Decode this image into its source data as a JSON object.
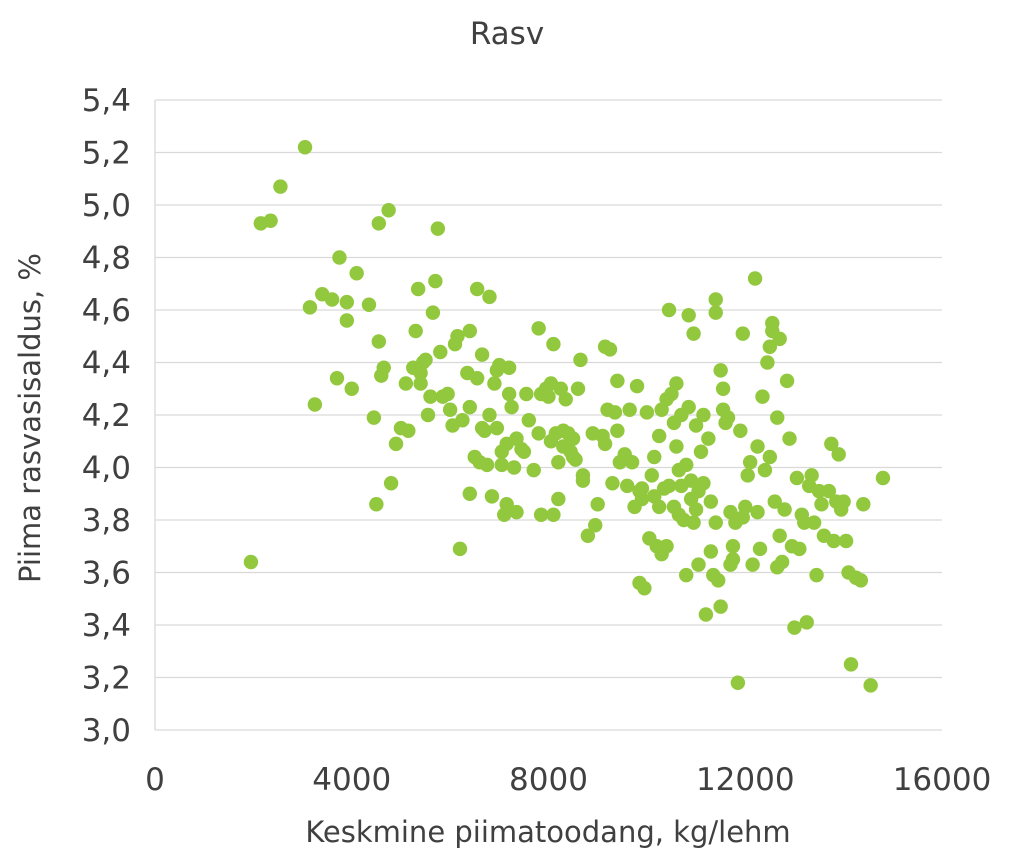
{
  "chart_data": {
    "type": "scatter",
    "title": "Rasv",
    "xlabel": "Keskmine piimatoodang, kg/lehm",
    "ylabel": "Piima rasvasisaldus, %",
    "xlim": [
      0,
      16000
    ],
    "ylim": [
      3.0,
      5.4
    ],
    "x_ticks": [
      0,
      4000,
      8000,
      12000,
      16000
    ],
    "y_ticks": [
      3.0,
      3.2,
      3.4,
      3.6,
      3.8,
      4.0,
      4.2,
      4.4,
      4.6,
      4.8,
      5.0,
      5.2,
      5.4
    ],
    "x_tick_labels": [
      "0",
      "4000",
      "8000",
      "12000",
      "16000"
    ],
    "y_tick_labels": [
      "3,0",
      "3,2",
      "3,4",
      "3,6",
      "3,8",
      "4,0",
      "4,2",
      "4,4",
      "4,6",
      "4,8",
      "5,0",
      "5,2",
      "5,4"
    ],
    "grid": "horizontal",
    "marker_color": "#92c83e",
    "series": [
      {
        "points": [
          [
            1950,
            3.64
          ],
          [
            2150,
            4.93
          ],
          [
            2350,
            4.94
          ],
          [
            2550,
            5.07
          ],
          [
            3050,
            5.22
          ],
          [
            3150,
            4.61
          ],
          [
            3250,
            4.24
          ],
          [
            3400,
            4.66
          ],
          [
            3600,
            4.64
          ],
          [
            3700,
            4.34
          ],
          [
            3750,
            4.8
          ],
          [
            3900,
            4.56
          ],
          [
            3900,
            4.63
          ],
          [
            4000,
            4.3
          ],
          [
            4100,
            4.74
          ],
          [
            4350,
            4.62
          ],
          [
            4450,
            4.19
          ],
          [
            4500,
            3.86
          ],
          [
            4550,
            4.93
          ],
          [
            4550,
            4.48
          ],
          [
            4600,
            4.35
          ],
          [
            4650,
            4.38
          ],
          [
            4750,
            4.98
          ],
          [
            4800,
            3.94
          ],
          [
            4900,
            4.09
          ],
          [
            5000,
            4.15
          ],
          [
            5100,
            4.32
          ],
          [
            5150,
            4.14
          ],
          [
            5250,
            4.38
          ],
          [
            5300,
            4.52
          ],
          [
            5350,
            4.68
          ],
          [
            5400,
            4.36
          ],
          [
            5400,
            4.32
          ],
          [
            5450,
            4.4
          ],
          [
            5500,
            4.41
          ],
          [
            5550,
            4.2
          ],
          [
            5600,
            4.27
          ],
          [
            5650,
            4.59
          ],
          [
            5700,
            4.71
          ],
          [
            5750,
            4.91
          ],
          [
            5800,
            4.44
          ],
          [
            5850,
            4.27
          ],
          [
            5950,
            4.28
          ],
          [
            6000,
            4.22
          ],
          [
            6050,
            4.16
          ],
          [
            6100,
            4.47
          ],
          [
            6150,
            4.5
          ],
          [
            6200,
            3.69
          ],
          [
            6250,
            4.18
          ],
          [
            6350,
            4.36
          ],
          [
            6400,
            4.52
          ],
          [
            6400,
            4.23
          ],
          [
            6400,
            3.9
          ],
          [
            6500,
            4.04
          ],
          [
            6550,
            4.68
          ],
          [
            6550,
            4.34
          ],
          [
            6600,
            4.02
          ],
          [
            6650,
            4.15
          ],
          [
            6650,
            4.43
          ],
          [
            6700,
            4.14
          ],
          [
            6750,
            4.01
          ],
          [
            6800,
            4.65
          ],
          [
            6800,
            4.2
          ],
          [
            6850,
            3.89
          ],
          [
            6900,
            4.32
          ],
          [
            6950,
            4.37
          ],
          [
            6950,
            4.15
          ],
          [
            7000,
            4.39
          ],
          [
            7050,
            4.06
          ],
          [
            7050,
            4.01
          ],
          [
            7100,
            3.82
          ],
          [
            7150,
            3.86
          ],
          [
            7150,
            4.09
          ],
          [
            7200,
            4.38
          ],
          [
            7200,
            4.28
          ],
          [
            7250,
            4.23
          ],
          [
            7300,
            4.0
          ],
          [
            7350,
            4.11
          ],
          [
            7350,
            3.83
          ],
          [
            7450,
            4.07
          ],
          [
            7500,
            4.06
          ],
          [
            7550,
            4.28
          ],
          [
            7600,
            4.18
          ],
          [
            7700,
            3.99
          ],
          [
            7800,
            4.53
          ],
          [
            7800,
            4.13
          ],
          [
            7850,
            4.28
          ],
          [
            7850,
            3.82
          ],
          [
            7950,
            4.3
          ],
          [
            8000,
            4.27
          ],
          [
            8050,
            4.32
          ],
          [
            8050,
            4.1
          ],
          [
            8100,
            4.47
          ],
          [
            8100,
            3.82
          ],
          [
            8150,
            4.13
          ],
          [
            8200,
            4.02
          ],
          [
            8200,
            3.88
          ],
          [
            8250,
            4.3
          ],
          [
            8300,
            4.14
          ],
          [
            8300,
            4.08
          ],
          [
            8350,
            4.26
          ],
          [
            8400,
            4.13
          ],
          [
            8450,
            4.06
          ],
          [
            8500,
            4.11
          ],
          [
            8500,
            4.04
          ],
          [
            8550,
            4.03
          ],
          [
            8600,
            4.3
          ],
          [
            8650,
            4.41
          ],
          [
            8700,
            3.95
          ],
          [
            8700,
            3.97
          ],
          [
            8800,
            3.74
          ],
          [
            8900,
            4.13
          ],
          [
            8950,
            3.78
          ],
          [
            9000,
            3.86
          ],
          [
            9100,
            4.12
          ],
          [
            9150,
            4.46
          ],
          [
            9150,
            4.09
          ],
          [
            9200,
            4.22
          ],
          [
            9250,
            4.45
          ],
          [
            9300,
            3.94
          ],
          [
            9350,
            4.21
          ],
          [
            9400,
            4.33
          ],
          [
            9400,
            4.14
          ],
          [
            9450,
            4.02
          ],
          [
            9550,
            4.05
          ],
          [
            9600,
            3.93
          ],
          [
            9650,
            4.22
          ],
          [
            9700,
            4.02
          ],
          [
            9750,
            3.85
          ],
          [
            9800,
            4.31
          ],
          [
            9850,
            3.91
          ],
          [
            9850,
            3.56
          ],
          [
            9900,
            3.88
          ],
          [
            9900,
            3.92
          ],
          [
            9950,
            3.54
          ],
          [
            10000,
            4.21
          ],
          [
            10050,
            3.73
          ],
          [
            10100,
            3.97
          ],
          [
            10150,
            4.04
          ],
          [
            10150,
            3.89
          ],
          [
            10200,
            3.7
          ],
          [
            10250,
            4.12
          ],
          [
            10250,
            3.85
          ],
          [
            10300,
            3.67
          ],
          [
            10300,
            4.22
          ],
          [
            10350,
            3.92
          ],
          [
            10400,
            3.7
          ],
          [
            10400,
            4.26
          ],
          [
            10450,
            4.6
          ],
          [
            10450,
            3.93
          ],
          [
            10500,
            4.28
          ],
          [
            10550,
            3.85
          ],
          [
            10550,
            4.17
          ],
          [
            10600,
            4.32
          ],
          [
            10600,
            4.08
          ],
          [
            10650,
            3.99
          ],
          [
            10650,
            3.82
          ],
          [
            10700,
            4.2
          ],
          [
            10700,
            3.93
          ],
          [
            10750,
            3.8
          ],
          [
            10800,
            4.01
          ],
          [
            10800,
            3.59
          ],
          [
            10850,
            4.58
          ],
          [
            10850,
            4.23
          ],
          [
            10900,
            3.95
          ],
          [
            10900,
            3.88
          ],
          [
            10950,
            4.51
          ],
          [
            10950,
            3.79
          ],
          [
            11000,
            4.16
          ],
          [
            11000,
            3.84
          ],
          [
            11050,
            3.63
          ],
          [
            11050,
            3.91
          ],
          [
            11100,
            4.06
          ],
          [
            11150,
            3.94
          ],
          [
            11150,
            4.2
          ],
          [
            11200,
            3.44
          ],
          [
            11250,
            4.11
          ],
          [
            11300,
            3.68
          ],
          [
            11300,
            3.87
          ],
          [
            11350,
            3.59
          ],
          [
            11400,
            3.79
          ],
          [
            11400,
            4.64
          ],
          [
            11400,
            4.59
          ],
          [
            11450,
            3.57
          ],
          [
            11500,
            4.37
          ],
          [
            11500,
            3.47
          ],
          [
            11550,
            4.22
          ],
          [
            11550,
            4.3
          ],
          [
            11600,
            4.17
          ],
          [
            11650,
            4.19
          ],
          [
            11700,
            3.63
          ],
          [
            11700,
            3.83
          ],
          [
            11750,
            3.65
          ],
          [
            11750,
            3.7
          ],
          [
            11800,
            3.79
          ],
          [
            11850,
            3.18
          ],
          [
            11900,
            4.14
          ],
          [
            11950,
            4.51
          ],
          [
            11950,
            3.81
          ],
          [
            12000,
            3.85
          ],
          [
            12050,
            3.97
          ],
          [
            12100,
            4.02
          ],
          [
            12150,
            3.63
          ],
          [
            12200,
            4.72
          ],
          [
            12250,
            4.08
          ],
          [
            12250,
            3.83
          ],
          [
            12300,
            3.69
          ],
          [
            12350,
            4.27
          ],
          [
            12400,
            3.99
          ],
          [
            12450,
            4.4
          ],
          [
            12500,
            4.04
          ],
          [
            12500,
            4.46
          ],
          [
            12550,
            4.55
          ],
          [
            12550,
            4.52
          ],
          [
            12600,
            3.87
          ],
          [
            12650,
            4.19
          ],
          [
            12650,
            3.62
          ],
          [
            12700,
            4.49
          ],
          [
            12700,
            3.74
          ],
          [
            12750,
            3.64
          ],
          [
            12800,
            3.84
          ],
          [
            12850,
            4.33
          ],
          [
            12900,
            4.11
          ],
          [
            12950,
            3.7
          ],
          [
            13000,
            3.39
          ],
          [
            13050,
            3.96
          ],
          [
            13100,
            3.69
          ],
          [
            13150,
            3.82
          ],
          [
            13200,
            3.79
          ],
          [
            13250,
            3.41
          ],
          [
            13300,
            3.93
          ],
          [
            13350,
            3.97
          ],
          [
            13400,
            3.79
          ],
          [
            13450,
            3.59
          ],
          [
            13500,
            3.91
          ],
          [
            13550,
            3.86
          ],
          [
            13600,
            3.74
          ],
          [
            13700,
            3.91
          ],
          [
            13750,
            4.09
          ],
          [
            13800,
            3.72
          ],
          [
            13850,
            3.87
          ],
          [
            13900,
            4.05
          ],
          [
            13950,
            3.84
          ],
          [
            14000,
            3.87
          ],
          [
            14050,
            3.72
          ],
          [
            14100,
            3.6
          ],
          [
            14150,
            3.25
          ],
          [
            14250,
            3.58
          ],
          [
            14350,
            3.57
          ],
          [
            14400,
            3.86
          ],
          [
            14550,
            3.17
          ],
          [
            14800,
            3.96
          ]
        ]
      }
    ]
  }
}
